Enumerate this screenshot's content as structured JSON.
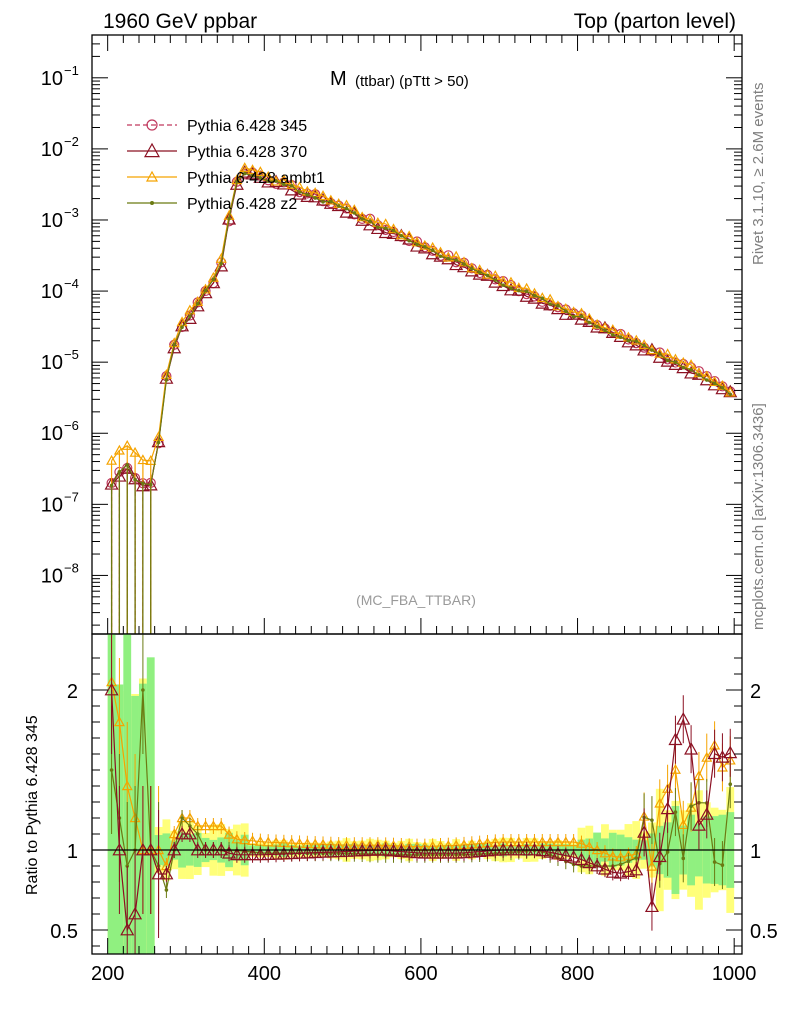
{
  "header": {
    "left": "1960 GeV ppbar",
    "right": "Top (parton level)"
  },
  "side_labels": {
    "rivet": "Rivet 3.1.10, ≥ 2.6M events",
    "mcplots": "mcplots.cern.ch [arXiv:1306.3436]"
  },
  "chart_data": [
    {
      "type": "line",
      "panel": "main",
      "title_main": "M",
      "title_sub": "(ttbar) (pTtt > 50)",
      "analysis_tag": "(MC_FBA_TTBAR)",
      "yscale": "log",
      "xlim": [
        180,
        1010
      ],
      "ylim": [
        1.5e-09,
        0.4
      ],
      "ytick_labels": [
        {
          "v": 0.1,
          "base": "10",
          "exp": "−1"
        },
        {
          "v": 0.01,
          "base": "10",
          "exp": "−2"
        },
        {
          "v": 0.001,
          "base": "10",
          "exp": "−3"
        },
        {
          "v": 0.0001,
          "base": "10",
          "exp": "−4"
        },
        {
          "v": 1e-05,
          "base": "10",
          "exp": "−5"
        },
        {
          "v": 1e-06,
          "base": "10",
          "exp": "−6"
        },
        {
          "v": 1e-07,
          "base": "10",
          "exp": "−7"
        },
        {
          "v": 1e-08,
          "base": "10",
          "exp": "−8"
        }
      ],
      "legend_placement": "top-left",
      "series": [
        {
          "name": "Pythia 6.428 345",
          "color": "#c0395e",
          "marker": "circle",
          "dashed": true
        },
        {
          "name": "Pythia 6.428 370",
          "color": "#8b1022",
          "marker": "triangle",
          "dashed": false
        },
        {
          "name": "Pythia 6.428 ambt1",
          "color": "#f5a300",
          "marker": "triangle",
          "dashed": false
        },
        {
          "name": "Pythia 6.428 z2",
          "color": "#6b7a12",
          "marker": "dot",
          "dashed": false
        }
      ],
      "shape_points": {
        "x": [
          200,
          210,
          220,
          230,
          240,
          250,
          260,
          270,
          280,
          290,
          300,
          310,
          320,
          330,
          340,
          350,
          360,
          370,
          380,
          400,
          450,
          500,
          550,
          600,
          650,
          700,
          750,
          800,
          850,
          900,
          950,
          1000
        ],
        "y": [
          2e-07,
          2e-07,
          4e-07,
          3e-07,
          2e-07,
          2e-07,
          2e-07,
          3e-06,
          1.2e-05,
          2.5e-05,
          4e-05,
          5.5e-05,
          8e-05,
          0.00012,
          0.00016,
          0.0004,
          0.0025,
          0.0045,
          0.0048,
          0.004,
          0.0025,
          0.0015,
          0.0008,
          0.00045,
          0.00025,
          0.00014,
          8e-05,
          4.5e-05,
          2.5e-05,
          1.4e-05,
          7.5e-06,
          3.5e-06
        ]
      }
    },
    {
      "type": "line",
      "panel": "ratio",
      "ylabel": "Ratio to Pythia 6.428 345",
      "xlim": [
        180,
        1010
      ],
      "ylim": [
        0.35,
        2.35
      ],
      "ytick_labels": [
        {
          "v": 0.5,
          "text": "0.5"
        },
        {
          "v": 1,
          "text": "1"
        },
        {
          "v": 2,
          "text": "2"
        }
      ],
      "xtick_labels": [
        {
          "v": 200,
          "text": "200"
        },
        {
          "v": 400,
          "text": "400"
        },
        {
          "v": 600,
          "text": "600"
        },
        {
          "v": 800,
          "text": "800"
        },
        {
          "v": 1000,
          "text": "1000"
        }
      ],
      "shape_points": {
        "x": [
          205,
          215,
          225,
          235,
          245,
          255,
          265,
          275,
          285,
          295,
          305,
          315,
          325,
          335,
          345,
          360,
          400,
          450,
          500,
          550,
          600,
          650,
          700,
          750,
          800,
          850,
          900,
          920,
          940,
          960,
          980,
          1000
        ],
        "ambt1": [
          2.05,
          1.8,
          1.4,
          1.2,
          1.0,
          1.0,
          1.0,
          0.9,
          1.1,
          1.2,
          1.2,
          1.15,
          1.15,
          1.15,
          1.15,
          1.07,
          1.05,
          1.04,
          1.03,
          1.03,
          1.02,
          1.03,
          1.05,
          1.05,
          1.05,
          0.95,
          1.0,
          1.4,
          1.4,
          1.6,
          1.5,
          1.4
        ],
        "r370": [
          2.0,
          1.0,
          0.5,
          0.6,
          1.0,
          1.0,
          0.85,
          0.85,
          1.0,
          1.1,
          1.1,
          1.0,
          1.0,
          1.0,
          1.0,
          0.97,
          0.97,
          0.98,
          0.99,
          1.0,
          0.98,
          0.98,
          1.0,
          1.0,
          0.95,
          0.85,
          0.9,
          1.5,
          1.6,
          1.2,
          1.6,
          1.4
        ],
        "z2": [
          1.5,
          1.2,
          0.9,
          1.0,
          2.0,
          1.0,
          0.9,
          0.75,
          1.0,
          1.2,
          1.15,
          1.1,
          1.0,
          1.0,
          1.0,
          1.0,
          0.98,
          0.98,
          0.98,
          0.97,
          0.97,
          0.97,
          0.98,
          1.0,
          0.9,
          0.9,
          1.0,
          1.2,
          1.0,
          1.5,
          0.9,
          1.3
        ]
      }
    }
  ]
}
